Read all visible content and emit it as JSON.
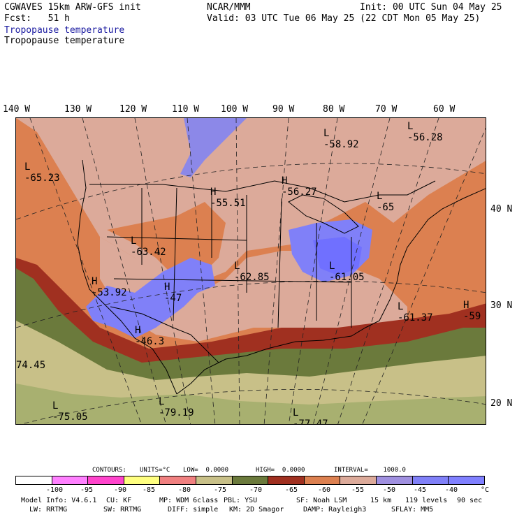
{
  "header": {
    "title_left": "CGWAVES 15km ARW-GFS init",
    "center": "NCAR/MMM",
    "init": "Init: 00 UTC Sun 04 May 25",
    "fcst": "Fcst:   51 h",
    "valid": "Valid: 03 UTC Tue 06 May 25 (22 CDT Mon 05 May 25)",
    "field_1": "Tropopause temperature",
    "field_2": "Tropopause temperature"
  },
  "longitudes": [
    "140 W",
    "130 W",
    "120 W",
    "110 W",
    "100 W",
    "90 W",
    "80 W",
    "70 W",
    "60 W"
  ],
  "latitudes": [
    "40 N",
    "30 N",
    "20 N"
  ],
  "map_labels": [
    {
      "sym": "L",
      "value": "-65.23"
    },
    {
      "sym": "L",
      "value": "-58.92"
    },
    {
      "sym": "L",
      "value": "-56.28"
    },
    {
      "sym": "H",
      "value": "-55.51"
    },
    {
      "sym": "H",
      "value": "-56.27"
    },
    {
      "sym": "L",
      "value": "-65"
    },
    {
      "sym": "L",
      "value": "-63.42"
    },
    {
      "sym": "L",
      "value": "-62.85"
    },
    {
      "sym": "H",
      "value": "-53.92"
    },
    {
      "sym": "H",
      "value": "-47"
    },
    {
      "sym": "L",
      "value": "-61.05"
    },
    {
      "sym": "L",
      "value": "-61.37"
    },
    {
      "sym": "H",
      "value": "-59"
    },
    {
      "sym": "H",
      "value": "-46.3"
    },
    {
      "sym": "",
      "value": "74.45"
    },
    {
      "sym": "L",
      "value": "-75.05"
    },
    {
      "sym": "L",
      "value": "-79.19"
    },
    {
      "sym": "L",
      "value": "-77.47"
    }
  ],
  "contour_info": {
    "contours": "CONTOURS:",
    "units": "UNITS=°C",
    "low": "LOW=  0.0000",
    "high": "HIGH=  0.0000",
    "interval": "INTERVAL=    1000.0"
  },
  "colorbar": {
    "colors": [
      "#ffffff",
      "#ff80ff",
      "#ff44cc",
      "#ffff80",
      "#f08080",
      "#c8c088",
      "#6b7a3c",
      "#a03020",
      "#dc8050",
      "#dcaa9a",
      "#a090e0",
      "#8080f8",
      "#8080ff"
    ],
    "ticks": [
      "-100",
      "-95",
      "-90",
      "-85",
      "-80",
      "-75",
      "-70",
      "-65",
      "-60",
      "-55",
      "-50",
      "-45",
      "-40",
      "°C"
    ]
  },
  "footer": {
    "line1_a": "Model Info: V4.6.1",
    "line1_b": "CU: KF",
    "line1_c": "MP: WDM 6class",
    "line1_d": "PBL: YSU",
    "line1_e": "SF: Noah LSM",
    "line1_f": "15 km",
    "line1_g": "119 levels",
    "line1_h": "90 sec",
    "line2_a": "LW: RRTMG",
    "line2_b": "SW: RRTMG",
    "line2_c": "DIFF: simple",
    "line2_d": "KM: 2D Smagor",
    "line2_e": "DAMP: Rayleigh3",
    "line2_f": "SFLAY: MM5"
  }
}
